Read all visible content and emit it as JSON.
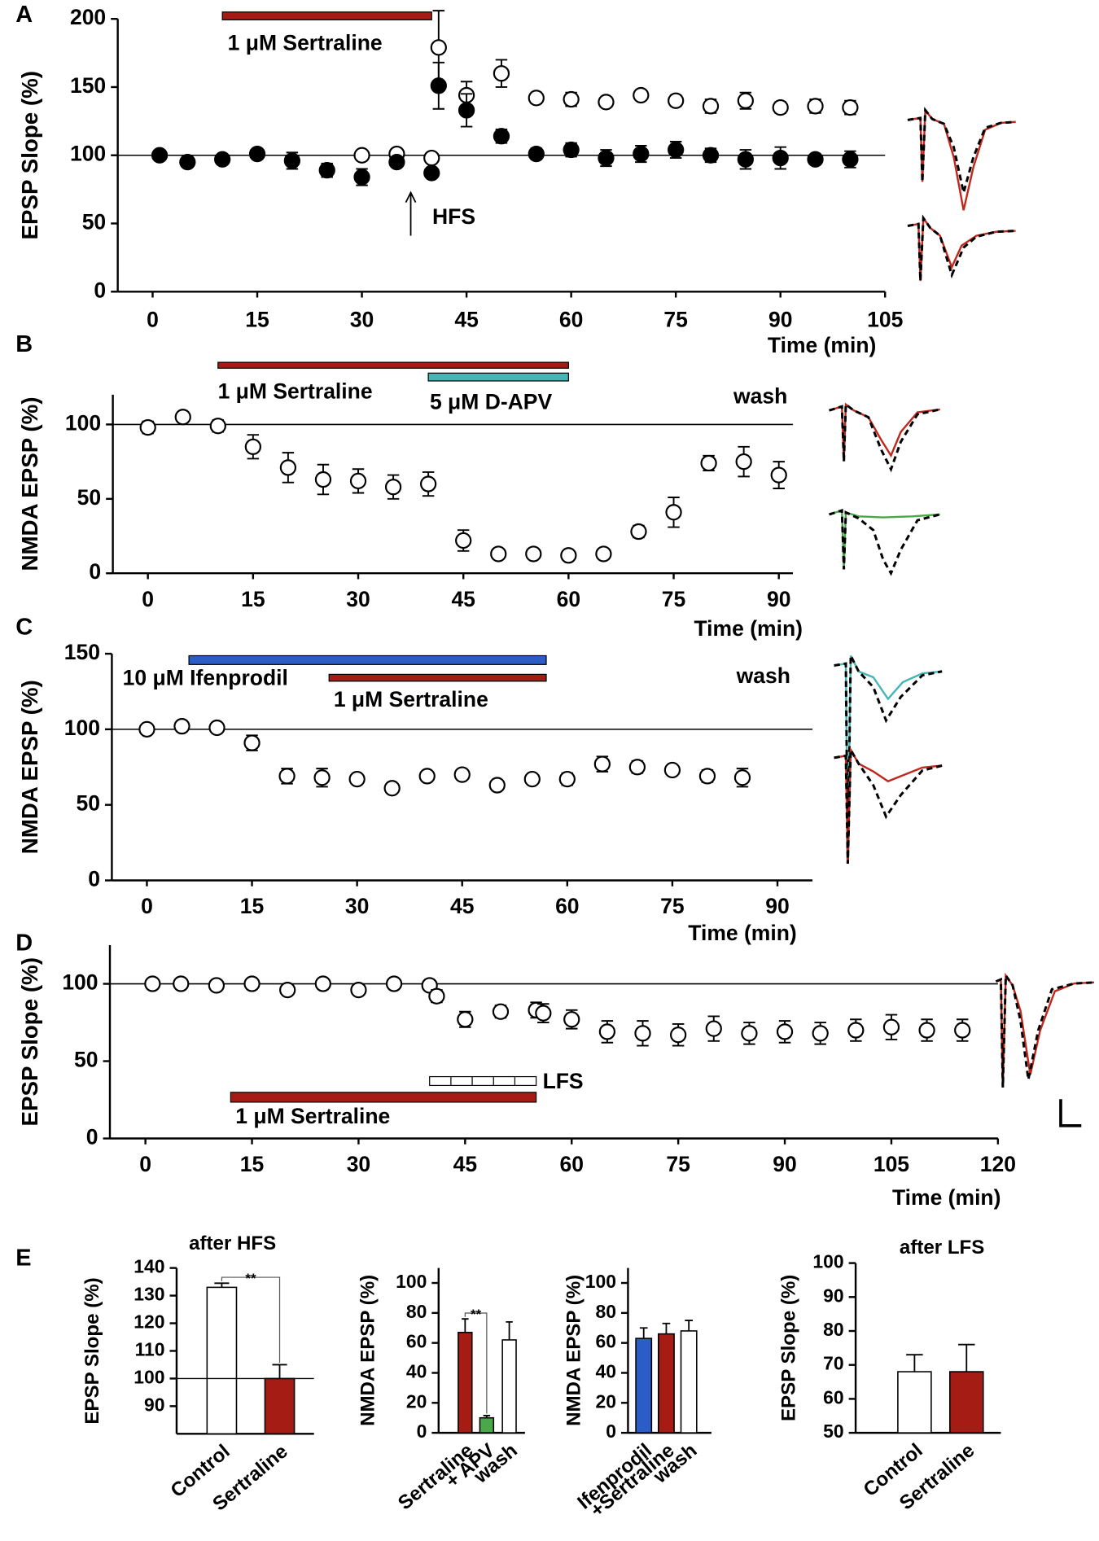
{
  "chart_data": [
    {
      "type": "scatter",
      "label": "A",
      "y_label": "EPSP Slope (%)",
      "x_label": "Time (min)",
      "xlim": [
        -5,
        105
      ],
      "xticks": [
        0,
        15,
        30,
        45,
        60,
        75,
        90,
        105
      ],
      "ylim": [
        0,
        200
      ],
      "yticks": [
        0,
        50,
        100,
        150,
        200
      ],
      "reference_line": 100,
      "x": [
        1,
        5,
        10,
        15,
        20,
        25,
        30,
        35,
        40,
        41,
        45,
        50,
        55,
        60,
        65,
        70,
        75,
        80,
        85,
        90,
        95,
        100
      ],
      "series": [
        {
          "fill": "#ffffff",
          "values": [
            null,
            null,
            null,
            null,
            null,
            null,
            100,
            101,
            98,
            179,
            144,
            160,
            142,
            141,
            139,
            144,
            140,
            136,
            140,
            135,
            136,
            135
          ],
          "errors": [
            null,
            null,
            null,
            null,
            null,
            null,
            null,
            null,
            null,
            27,
            10,
            10,
            4,
            5,
            3,
            3,
            4,
            5,
            6,
            4,
            5,
            5
          ]
        },
        {
          "fill": "#000000",
          "values": [
            100,
            95,
            97,
            101,
            96,
            89,
            84,
            95,
            87,
            151,
            133,
            114,
            101,
            104,
            98,
            101,
            104,
            100,
            97,
            98,
            97,
            97
          ],
          "errors": [
            null,
            null,
            null,
            3,
            6,
            5,
            6,
            3,
            3,
            17,
            12,
            5,
            4,
            5,
            6,
            6,
            6,
            5,
            7,
            8,
            3,
            6
          ]
        }
      ],
      "treatments": [
        {
          "label": "1 μM Sertraline",
          "start": 10,
          "end": 40,
          "color": "#a51c14"
        }
      ],
      "annotations": [
        {
          "text": "HFS",
          "x": 37
        }
      ]
    },
    {
      "type": "scatter",
      "label": "B",
      "y_label": "NMDA EPSP (%)",
      "x_label": "Time (min)",
      "xlim": [
        -5,
        92
      ],
      "xticks": [
        0,
        15,
        30,
        45,
        60,
        75,
        90
      ],
      "ylim": [
        0,
        120
      ],
      "yticks": [
        0,
        50,
        100
      ],
      "reference_line": 100,
      "x": [
        0,
        5,
        10,
        15,
        20,
        25,
        30,
        35,
        40,
        45,
        50,
        55,
        60,
        65,
        70,
        75,
        80,
        85,
        90
      ],
      "series": [
        {
          "fill": "#ffffff",
          "values": [
            98,
            105,
            99,
            85,
            71,
            63,
            62,
            58,
            60,
            22,
            13,
            13,
            12,
            13,
            28,
            41,
            74,
            75,
            66
          ],
          "errors": [
            4,
            null,
            4,
            8,
            10,
            10,
            8,
            8,
            8,
            7,
            null,
            null,
            null,
            null,
            4,
            10,
            5,
            10,
            9
          ]
        }
      ],
      "treatments": [
        {
          "label": "1 μM Sertraline",
          "start": 10,
          "end": 60,
          "color": "#a51c14"
        },
        {
          "label": "5 μM D-APV",
          "start": 40,
          "end": 60,
          "color": "#45b5b5"
        }
      ],
      "annotations": [
        {
          "text": "wash"
        }
      ]
    },
    {
      "type": "scatter",
      "label": "C",
      "y_label": "NMDA EPSP (%)",
      "x_label": "Time (min)",
      "xlim": [
        -5,
        95
      ],
      "xticks": [
        0,
        15,
        30,
        45,
        60,
        75,
        90
      ],
      "ylim": [
        0,
        150
      ],
      "yticks": [
        0,
        50,
        100,
        150
      ],
      "reference_line": 100,
      "x": [
        0,
        5,
        10,
        15,
        20,
        25,
        30,
        35,
        40,
        45,
        50,
        55,
        60,
        65,
        70,
        75,
        80,
        85
      ],
      "series": [
        {
          "fill": "#ffffff",
          "values": [
            100,
            102,
            101,
            91,
            69,
            68,
            67,
            61,
            69,
            70,
            63,
            67,
            67,
            77,
            75,
            73,
            69,
            68
          ],
          "errors": [
            null,
            null,
            null,
            5,
            5,
            6,
            null,
            null,
            null,
            null,
            null,
            null,
            4,
            5,
            4,
            null,
            4,
            6
          ]
        }
      ],
      "treatments": [
        {
          "label": "10 μM Ifenprodil",
          "start": 6,
          "end": 57,
          "color": "#2c5cc5"
        },
        {
          "label": "1 μM Sertraline",
          "start": 26,
          "end": 57,
          "color": "#a51c14"
        }
      ],
      "annotations": [
        {
          "text": "wash"
        }
      ]
    },
    {
      "type": "scatter",
      "label": "D",
      "y_label": "EPSP Slope (%)",
      "x_label": "Time (min)",
      "xlim": [
        -5,
        120
      ],
      "xticks": [
        0,
        15,
        30,
        45,
        60,
        75,
        90,
        105,
        120
      ],
      "ylim": [
        0,
        125
      ],
      "yticks": [
        0,
        50,
        100
      ],
      "reference_line": 100,
      "x": [
        1,
        5,
        10,
        15,
        20,
        25,
        30,
        35,
        40,
        41,
        45,
        50,
        55,
        56,
        60,
        65,
        70,
        75,
        80,
        85,
        90,
        95,
        100,
        105,
        110,
        115
      ],
      "series": [
        {
          "fill": "#ffffff",
          "values": [
            100,
            100,
            99,
            100,
            96,
            100,
            96,
            100,
            99,
            92,
            77,
            82,
            83,
            81,
            77,
            69,
            68,
            67,
            71,
            68,
            69,
            68,
            70,
            72,
            70,
            70
          ],
          "errors": [
            null,
            null,
            null,
            null,
            null,
            null,
            null,
            null,
            null,
            4,
            5,
            4,
            5,
            6,
            6,
            7,
            8,
            7,
            8,
            7,
            7,
            7,
            7,
            8,
            7,
            7
          ]
        }
      ],
      "treatments": [
        {
          "label": "1 μM Sertraline",
          "start": 12,
          "end": 55,
          "color": "#a51c14"
        },
        {
          "label": "LFS",
          "start": 40,
          "end": 55,
          "color": "#ffffff",
          "style": "segmented"
        }
      ],
      "annotations": []
    },
    {
      "type": "bar",
      "label": "E",
      "title": "after HFS",
      "y_label": "EPSP Slope (%)",
      "categories": [
        "Control",
        "Sertraline"
      ],
      "values": [
        133,
        100
      ],
      "errors": [
        1.5,
        5
      ],
      "colors": [
        "#ffffff",
        "#a51c14"
      ],
      "ylim": [
        80,
        140
      ],
      "yticks": [
        90,
        100,
        110,
        120,
        130,
        140
      ],
      "reference_line": 100,
      "significance": "**"
    },
    {
      "type": "bar",
      "y_label": "NMDA EPSP (%)",
      "categories": [
        "Sertraline",
        "+ APV",
        "wash"
      ],
      "values": [
        67,
        10,
        62
      ],
      "errors": [
        9,
        1.5,
        12
      ],
      "colors": [
        "#a51c14",
        "#4aa84a",
        "#ffffff"
      ],
      "ylim": [
        0,
        110
      ],
      "yticks": [
        0,
        20,
        40,
        60,
        80,
        100
      ],
      "significance": "**"
    },
    {
      "type": "bar",
      "y_label": "NMDA EPSP (%)",
      "categories": [
        "Ifenprodil",
        "+Sertraline",
        "wash"
      ],
      "values": [
        63,
        66,
        68
      ],
      "errors": [
        7,
        7,
        7
      ],
      "colors": [
        "#2c5cc5",
        "#a51c14",
        "#ffffff"
      ],
      "ylim": [
        0,
        110
      ],
      "yticks": [
        0,
        20,
        40,
        60,
        80,
        100
      ]
    },
    {
      "type": "bar",
      "title": "after LFS",
      "y_label": "EPSP Slope (%)",
      "categories": [
        "Control",
        "Sertraline"
      ],
      "values": [
        68,
        68
      ],
      "errors": [
        5,
        8
      ],
      "colors": [
        "#ffffff",
        "#a51c14"
      ],
      "ylim": [
        50,
        100
      ],
      "yticks": [
        50,
        60,
        70,
        80,
        90,
        100
      ]
    }
  ]
}
